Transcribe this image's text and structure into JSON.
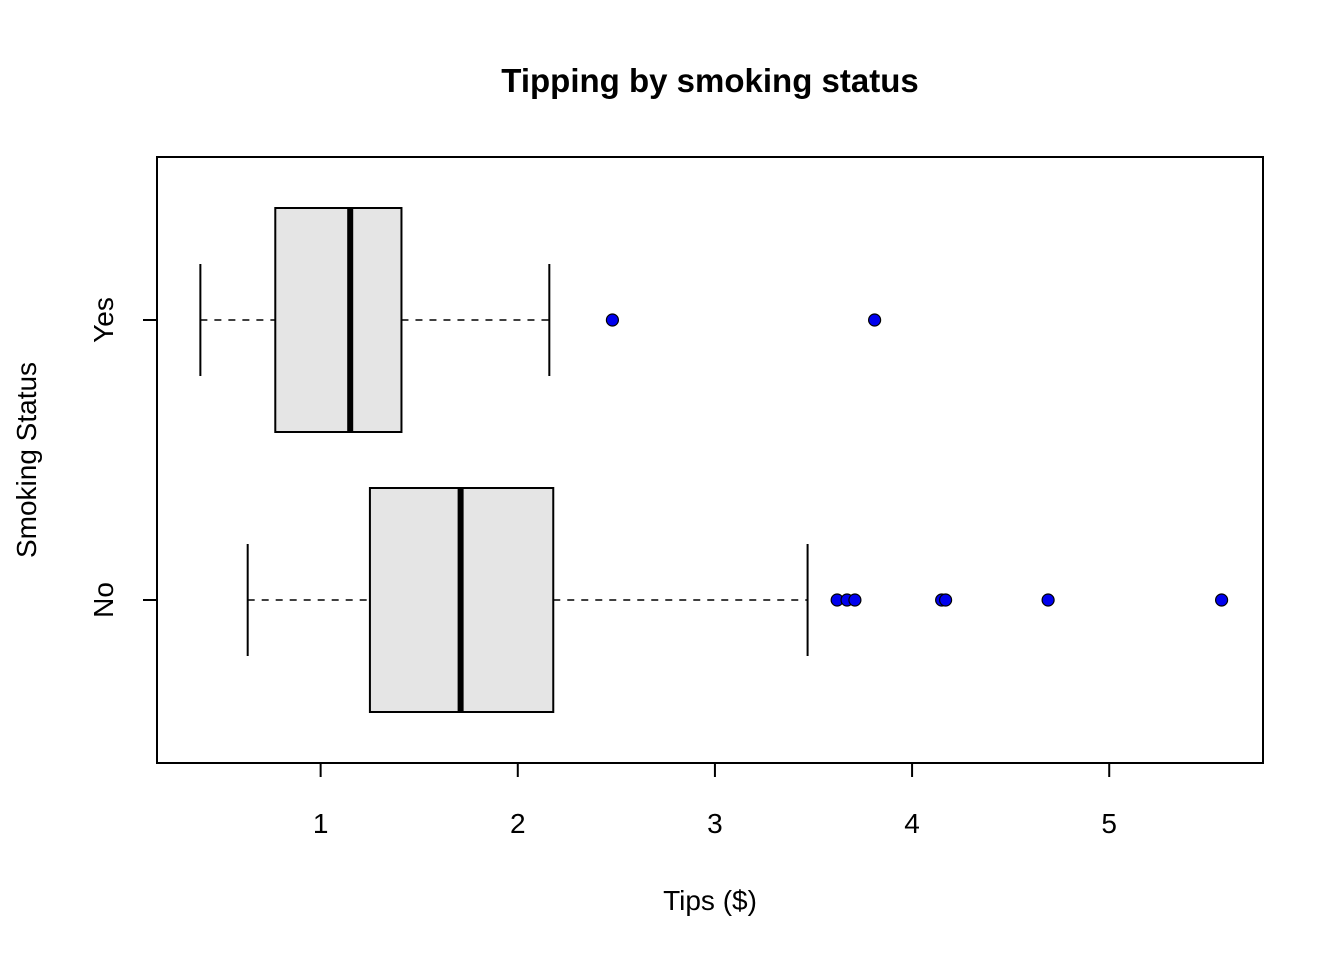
{
  "chart_data": {
    "type": "boxplot",
    "orientation": "horizontal",
    "title": "Tipping by smoking status",
    "xlabel": "Tips ($)",
    "ylabel": "Smoking Status",
    "xlim": [
      0.17,
      5.78
    ],
    "x_ticks": [
      1,
      2,
      3,
      4,
      5
    ],
    "categories": [
      "No",
      "Yes"
    ],
    "box_fill": "#e5e5e5",
    "outlier_color": "#0000ee",
    "series": [
      {
        "name": "No",
        "whisker_low": 0.63,
        "q1": 1.25,
        "median": 1.71,
        "q3": 2.18,
        "whisker_high": 3.47,
        "outliers": [
          3.62,
          3.67,
          3.71,
          4.15,
          4.17,
          4.69,
          5.57
        ]
      },
      {
        "name": "Yes",
        "whisker_low": 0.39,
        "q1": 0.77,
        "median": 1.15,
        "q3": 1.41,
        "whisker_high": 2.16,
        "outliers": [
          2.48,
          3.81
        ]
      }
    ],
    "grid": false,
    "legend": "none"
  }
}
